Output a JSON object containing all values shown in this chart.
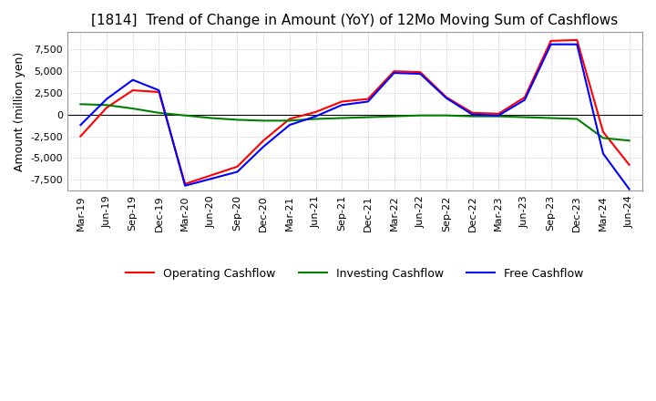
{
  "title": "[1814]  Trend of Change in Amount (YoY) of 12Mo Moving Sum of Cashflows",
  "ylabel": "Amount (million yen)",
  "ylim": [
    -8800,
    9500
  ],
  "yticks": [
    -7500,
    -5000,
    -2500,
    0,
    2500,
    5000,
    7500
  ],
  "x_labels": [
    "Mar-19",
    "Jun-19",
    "Sep-19",
    "Dec-19",
    "Mar-20",
    "Jun-20",
    "Sep-20",
    "Dec-20",
    "Mar-21",
    "Jun-21",
    "Sep-21",
    "Dec-21",
    "Mar-22",
    "Jun-22",
    "Sep-22",
    "Dec-22",
    "Mar-23",
    "Jun-23",
    "Sep-23",
    "Dec-23",
    "Mar-24",
    "Jun-24"
  ],
  "operating": [
    -2500,
    800,
    2800,
    2600,
    -8000,
    -7000,
    -6000,
    -3000,
    -500,
    300,
    1500,
    1800,
    5000,
    4900,
    2000,
    200,
    100,
    2000,
    8500,
    8600,
    -2000,
    -5800
  ],
  "investing": [
    1200,
    1100,
    700,
    200,
    -100,
    -400,
    -600,
    -700,
    -700,
    -500,
    -400,
    -300,
    -200,
    -100,
    -100,
    -200,
    -200,
    -300,
    -400,
    -500,
    -2700,
    -3000
  ],
  "free": [
    -1200,
    1800,
    4000,
    2800,
    -8200,
    -7400,
    -6600,
    -3700,
    -1200,
    -200,
    1100,
    1500,
    4800,
    4700,
    1900,
    0,
    -100,
    1700,
    8100,
    8100,
    -4500,
    -8600
  ],
  "operating_color": "#ff0000",
  "investing_color": "#008000",
  "free_color": "#0000ff",
  "line_width": 1.5,
  "background_color": "#ffffff",
  "grid_color": "#aaaaaa",
  "title_fontsize": 11,
  "label_fontsize": 9,
  "tick_fontsize": 8
}
